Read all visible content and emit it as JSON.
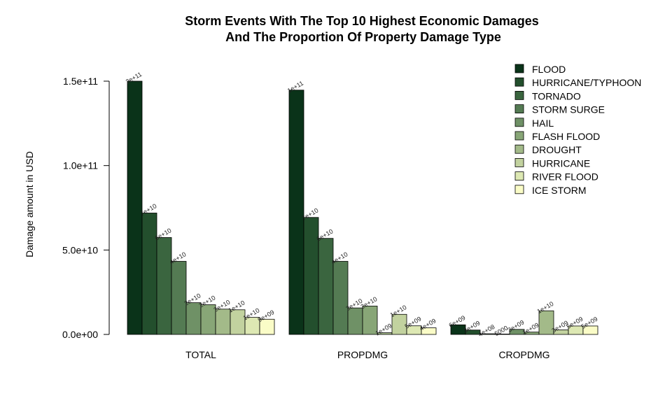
{
  "chart_data": {
    "type": "bar",
    "title_lines": [
      "Storm Events With The Top 10 Highest Economic Damages",
      "And The Proportion Of Property Damage Type"
    ],
    "ylabel": "Damage amount in USD",
    "ylim": [
      0,
      150000000000
    ],
    "yticks": [
      {
        "value": 0,
        "label": "0.0e+00"
      },
      {
        "value": 50000000000,
        "label": "5.0e+10"
      },
      {
        "value": 100000000000,
        "label": "1.0e+11"
      },
      {
        "value": 150000000000,
        "label": "1.5e+11"
      }
    ],
    "categories": [
      "TOTAL",
      "PROPDMG",
      "CROPDMG"
    ],
    "legend_position": "top-right",
    "series": [
      {
        "name": "FLOOD",
        "color": "#0A3319",
        "values": [
          150000000000,
          144700000000,
          5700000000
        ],
        "labels": [
          "2e+11",
          "1e+11",
          "6e+09"
        ]
      },
      {
        "name": "HURRICANE/TYPHOON",
        "color": "#234F2D",
        "values": [
          71900000000,
          69300000000,
          2600000000
        ],
        "labels": [
          "7e+10",
          "7e+10",
          "3e+09"
        ]
      },
      {
        "name": "TORNADO",
        "color": "#3A653F",
        "values": [
          57400000000,
          56900000000,
          400000000
        ],
        "labels": [
          "6e+10",
          "6e+10",
          "4e+08"
        ]
      },
      {
        "name": "STORM SURGE",
        "color": "#547B53",
        "values": [
          43300000000,
          43300000000,
          5000
        ],
        "labels": [
          "4e+10",
          "4e+10",
          "5000"
        ]
      },
      {
        "name": "HAIL",
        "color": "#6F9166",
        "values": [
          18800000000,
          15700000000,
          3000000000
        ],
        "labels": [
          "2e+10",
          "2e+10",
          "3e+09"
        ]
      },
      {
        "name": "FLASH FLOOD",
        "color": "#88A677",
        "values": [
          17600000000,
          16800000000,
          1400000000
        ],
        "labels": [
          "2e+10",
          "2e+10",
          "1e+09"
        ]
      },
      {
        "name": "DROUGHT",
        "color": "#A3BA89",
        "values": [
          15000000000,
          1000000000,
          14000000000
        ],
        "labels": [
          "2e+10",
          "1e+09",
          "1e+10"
        ]
      },
      {
        "name": "HURRICANE",
        "color": "#C2D29F",
        "values": [
          14600000000,
          11900000000,
          2700000000
        ],
        "labels": [
          "1e+10",
          "1e+10",
          "3e+09"
        ]
      },
      {
        "name": "RIVER FLOOD",
        "color": "#DDE8B3",
        "values": [
          10100000000,
          5100000000,
          5000000000
        ],
        "labels": [
          "1e+10",
          "5e+09",
          "5e+09"
        ]
      },
      {
        "name": "ICE STORM",
        "color": "#FAFCC7",
        "values": [
          9000000000,
          3900000000,
          5000000000
        ],
        "labels": [
          "9e+09",
          "4e+09",
          "5e+09"
        ]
      }
    ]
  }
}
